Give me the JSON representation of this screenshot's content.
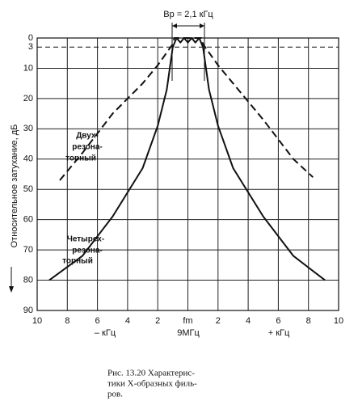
{
  "chart_data": {
    "type": "line",
    "title": "Bp = 2,1 кГц",
    "y_label": "Относительное затухание, дБ",
    "x_group_labels": [
      "– кГц",
      "9МГц",
      "+ кГц"
    ],
    "caption": [
      "Рис. 13.20   Характерис-",
      "тики Х-образных филь-",
      "ров."
    ],
    "xlim": [
      -10,
      10
    ],
    "xticks": [
      {
        "value": -10,
        "label": "10"
      },
      {
        "value": -8,
        "label": "8"
      },
      {
        "value": -6,
        "label": "6"
      },
      {
        "value": -4,
        "label": "4"
      },
      {
        "value": -2,
        "label": "2"
      },
      {
        "value": 0,
        "label": "fm"
      },
      2,
      4,
      6,
      8,
      10
    ],
    "ylim": [
      0,
      90
    ],
    "y_inverted": true,
    "yticks": [
      0,
      3,
      10,
      20,
      30,
      40,
      50,
      60,
      70,
      80,
      90
    ],
    "reference_line": 3,
    "grid": true,
    "series": [
      {
        "name": [
          "Двух-",
          "резона-",
          "торный"
        ],
        "color": "#111",
        "line_style": "dashed",
        "x": [
          -8.5,
          -7,
          -5,
          -3,
          -2,
          -1,
          -0.9,
          0,
          0.9,
          1,
          2,
          3,
          5,
          7,
          8.3
        ],
        "values": [
          47,
          38,
          25,
          15,
          9,
          2,
          0,
          0,
          0,
          2,
          9,
          15,
          27,
          40,
          46
        ]
      },
      {
        "name": [
          "Четырех-",
          "резона-",
          "торный"
        ],
        "color": "#111",
        "line_style": "solid",
        "x": [
          -9.2,
          -7,
          -5,
          -3,
          -2,
          -1.4,
          -1,
          -0.75,
          -0.5,
          -0.25,
          0,
          0.25,
          0.5,
          0.75,
          1,
          1.4,
          2,
          3,
          5,
          7,
          9.1
        ],
        "values": [
          80,
          72,
          59,
          43,
          29,
          17,
          3,
          0,
          1.5,
          0,
          1.5,
          0,
          1.5,
          0,
          3,
          17,
          29,
          43,
          59,
          72,
          80
        ]
      }
    ]
  }
}
